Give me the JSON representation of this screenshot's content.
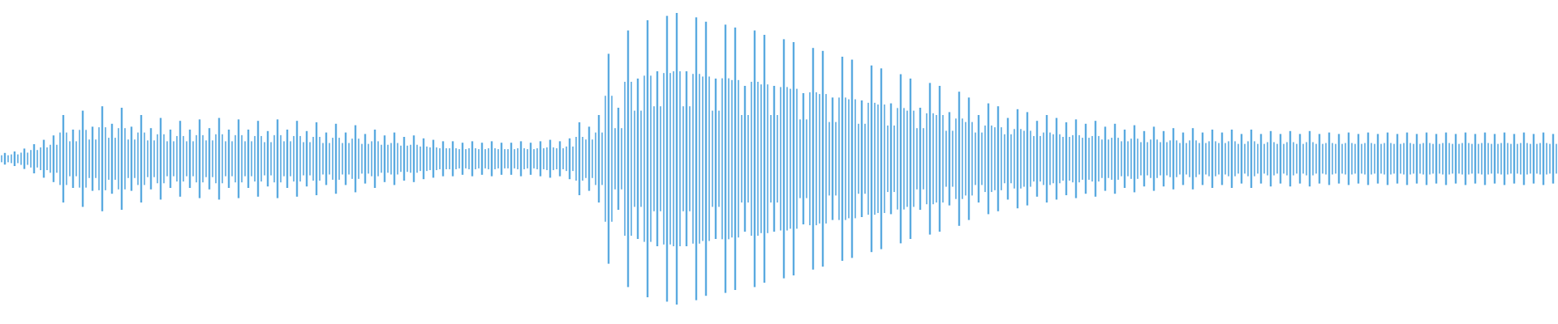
{
  "chart_data": {
    "type": "waveform",
    "color": "#5aaae0",
    "ylim": [
      -1,
      1
    ],
    "values": [
      0.04,
      0.05,
      0.07,
      0.1,
      0.13,
      0.16,
      0.3,
      0.2,
      0.33,
      0.22,
      0.36,
      0.24,
      0.35,
      0.22,
      0.3,
      0.21,
      0.28,
      0.2,
      0.26,
      0.2,
      0.27,
      0.21,
      0.28,
      0.2,
      0.27,
      0.2,
      0.26,
      0.19,
      0.27,
      0.2,
      0.26,
      0.19,
      0.25,
      0.18,
      0.24,
      0.18,
      0.23,
      0.17,
      0.2,
      0.16,
      0.18,
      0.15,
      0.16,
      0.14,
      0.13,
      0.12,
      0.12,
      0.11,
      0.12,
      0.11,
      0.12,
      0.11,
      0.11,
      0.12,
      0.11,
      0.12,
      0.13,
      0.12,
      0.14,
      0.25,
      0.22,
      0.3,
      0.72,
      0.35,
      0.88,
      0.55,
      0.95,
      0.6,
      0.98,
      1.0,
      0.6,
      0.97,
      0.94,
      0.55,
      0.92,
      0.9,
      0.5,
      0.88,
      0.85,
      0.5,
      0.82,
      0.8,
      0.45,
      0.76,
      0.74,
      0.42,
      0.7,
      0.68,
      0.4,
      0.64,
      0.62,
      0.38,
      0.58,
      0.55,
      0.35,
      0.52,
      0.5,
      0.32,
      0.46,
      0.42,
      0.3,
      0.38,
      0.36,
      0.28,
      0.34,
      0.32,
      0.26,
      0.3,
      0.28,
      0.25,
      0.27,
      0.24,
      0.26,
      0.22,
      0.24,
      0.2,
      0.23,
      0.19,
      0.22,
      0.19,
      0.21,
      0.18,
      0.21,
      0.18,
      0.2,
      0.18,
      0.2,
      0.17,
      0.2,
      0.17,
      0.19,
      0.17,
      0.19,
      0.17,
      0.19,
      0.17,
      0.18,
      0.17,
      0.18,
      0.17,
      0.18,
      0.17,
      0.18,
      0.17,
      0.18,
      0.17,
      0.18,
      0.17,
      0.18,
      0.17,
      0.18,
      0.17,
      0.18,
      0.17,
      0.18,
      0.17,
      0.18,
      0.17,
      0.18,
      0.17
    ]
  }
}
